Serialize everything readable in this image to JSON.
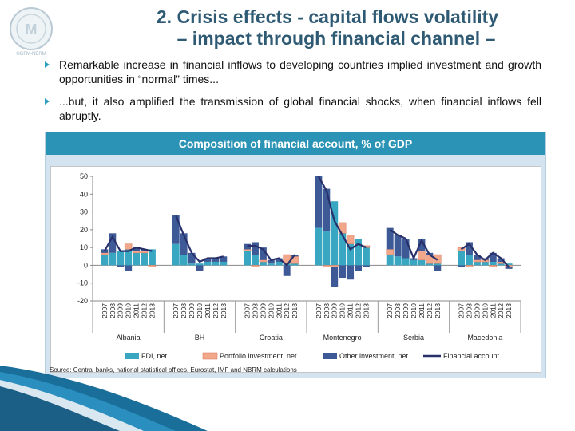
{
  "slide": {
    "title_line1": "2. Crisis effects - capital flows volatility",
    "title_line2": "– impact through financial channel –",
    "logo_text": "HGFM-NBRM",
    "bullets": [
      "Remarkable increase in financial inflows to developing countries implied investment and growth opportunities in “normal” times...",
      "...but, it also amplified the transmission of global financial shocks, when financial inflows fell abruptly."
    ],
    "panel_title": "Composition of financial account, % of GDP",
    "source": "Source: Central banks, national statistical offices, Eurostat, IMF and NBRM calculations"
  },
  "colors": {
    "fdi": "#3aa7c2",
    "portfolio": "#f2a68a",
    "other": "#3e5a96",
    "financial": "#27306a",
    "accent": "#2b93b5",
    "title": "#2f5a74"
  },
  "chart_data": {
    "type": "bar",
    "stacked": true,
    "ylim": [
      -20,
      50
    ],
    "yticks": [
      "50",
      "40",
      "30",
      "20",
      "10",
      "0",
      "-10",
      "-20"
    ],
    "years": [
      "2007",
      "2008",
      "2009",
      "2010",
      "2011",
      "2012",
      "2013"
    ],
    "groups": [
      "Albania",
      "BH",
      "Croatia",
      "Montenegro",
      "Serbia",
      "Macedonia"
    ],
    "legend_position": "bottom",
    "series": [
      {
        "name": "FDI, net",
        "type": "bar",
        "values": [
          [
            6,
            7,
            8,
            9,
            7,
            7,
            9
          ],
          [
            12,
            6,
            1,
            1,
            2,
            2,
            2
          ],
          [
            8,
            6,
            2,
            1,
            2,
            1,
            1
          ],
          [
            21,
            19,
            36,
            18,
            12,
            15,
            10
          ],
          [
            6,
            5,
            4,
            3,
            3,
            1,
            1
          ],
          [
            8,
            6,
            2,
            2,
            2,
            1,
            1
          ]
        ]
      },
      {
        "name": "Portfolio investment, net",
        "type": "bar",
        "values": [
          [
            1,
            0,
            0,
            3,
            1,
            1,
            -1
          ],
          [
            0,
            0,
            0,
            0,
            0,
            0,
            0
          ],
          [
            1,
            -1,
            1,
            0,
            0,
            5,
            4
          ],
          [
            0,
            -1,
            -1,
            6,
            5,
            0,
            1
          ],
          [
            3,
            0,
            0,
            0,
            5,
            5,
            5
          ],
          [
            2,
            -1,
            1,
            1,
            -1,
            1,
            -1
          ]
        ]
      },
      {
        "name": "Other investment, net",
        "type": "bar",
        "values": [
          [
            2,
            11,
            -1,
            -3,
            2,
            1,
            0
          ],
          [
            16,
            12,
            6,
            -3,
            2,
            2,
            3
          ],
          [
            3,
            7,
            7,
            2,
            2,
            -6,
            1
          ],
          [
            29,
            24,
            -11,
            -7,
            -8,
            -3,
            -1
          ],
          [
            12,
            12,
            11,
            1,
            7,
            1,
            -3
          ],
          [
            -1,
            7,
            3,
            1,
            5,
            2,
            -1
          ]
        ]
      },
      {
        "name": "Financial account",
        "type": "line",
        "values": [
          [
            8,
            16,
            8,
            8,
            10,
            9,
            8
          ],
          [
            28,
            17,
            7,
            2,
            4,
            4,
            5
          ],
          [
            11,
            11,
            9,
            3,
            4,
            0,
            6
          ],
          [
            50,
            42,
            25,
            17,
            9,
            12,
            10
          ],
          [
            20,
            17,
            15,
            4,
            14,
            6,
            3
          ],
          [
            9,
            12,
            6,
            3,
            7,
            4,
            -1
          ]
        ]
      }
    ]
  }
}
